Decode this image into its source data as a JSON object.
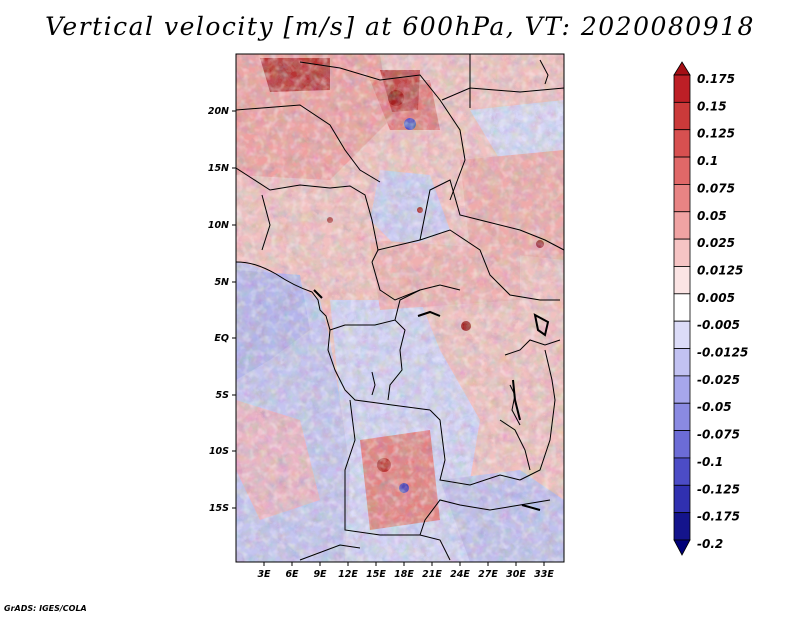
{
  "title": "Vertical velocity [m/s] at 600hPa, VT: 2020080918",
  "footer": "GrADS: IGES/COLA",
  "lat_labels": [
    "20N",
    "15N",
    "10N",
    "5N",
    "EQ",
    "5S",
    "10S",
    "15S"
  ],
  "lon_labels": [
    "3E",
    "6E",
    "9E",
    "12E",
    "15E",
    "18E",
    "21E",
    "24E",
    "27E",
    "30E",
    "33E"
  ],
  "colorbar": {
    "labels": [
      "0.175",
      "0.15",
      "0.125",
      "0.1",
      "0.075",
      "0.05",
      "0.025",
      "0.0125",
      "0.005",
      "-0.005",
      "-0.0125",
      "-0.025",
      "-0.05",
      "-0.075",
      "-0.1",
      "-0.125",
      "-0.175",
      "-0.2"
    ],
    "colors": [
      "#a50f15",
      "#bd1f26",
      "#cb3a3a",
      "#d75050",
      "#e06868",
      "#e88484",
      "#f0a3a3",
      "#f6c4c4",
      "#fbe4e4",
      "#ffffff",
      "#dcdcf8",
      "#c2c2f2",
      "#a6a6ec",
      "#8a8ae2",
      "#6c6cd6",
      "#4c4cc6",
      "#3030b0",
      "#14148c",
      "#000078"
    ]
  },
  "chart_data": {
    "type": "heatmap",
    "title": "Vertical velocity [m/s] at 600hPa, VT: 2020080918",
    "variable": "Vertical velocity",
    "units": "m/s",
    "level": "600hPa",
    "valid_time": "2020080918",
    "x_ticks": [
      "3E",
      "6E",
      "9E",
      "12E",
      "15E",
      "18E",
      "21E",
      "24E",
      "27E",
      "30E",
      "33E"
    ],
    "y_ticks": [
      "20N",
      "15N",
      "10N",
      "5N",
      "EQ",
      "5S",
      "10S",
      "15S"
    ],
    "lon_range": [
      0.5,
      34.5
    ],
    "lat_range": [
      -20,
      24.5
    ],
    "contour_levels": [
      -0.2,
      -0.175,
      -0.125,
      -0.1,
      -0.075,
      -0.05,
      -0.025,
      -0.0125,
      -0.005,
      0.005,
      0.0125,
      0.025,
      0.05,
      0.075,
      0.1,
      0.125,
      0.15,
      0.175
    ],
    "colormap": "blue-white-red"
  }
}
